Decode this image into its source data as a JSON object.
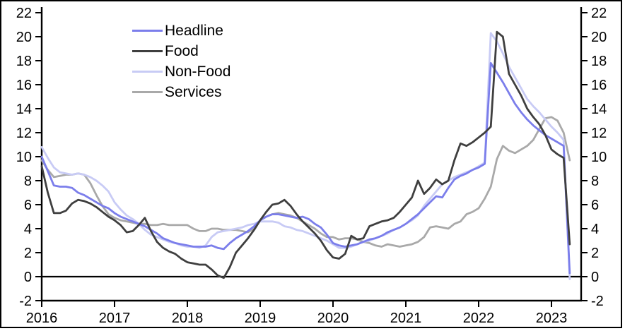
{
  "chart_data": {
    "type": "line",
    "title": "",
    "x_start": "2016-01",
    "x_frequency": "monthly",
    "xtick_labels": [
      "2016",
      "2017",
      "2018",
      "2019",
      "2020",
      "2021",
      "2022",
      "2023"
    ],
    "ylim": [
      -2,
      22
    ],
    "ytick_step": 2,
    "dual_y_axis": true,
    "grid": false,
    "zero_line": true,
    "legend_position": "top-left-inside",
    "series": [
      {
        "name": "Headline",
        "color": "#7b7eeb",
        "values": [
          10.0,
          8.8,
          7.6,
          7.5,
          7.5,
          7.4,
          7.0,
          6.8,
          6.5,
          6.2,
          5.9,
          5.7,
          5.3,
          5.0,
          4.8,
          4.6,
          4.4,
          4.2,
          3.9,
          3.6,
          3.2,
          3.0,
          2.8,
          2.7,
          2.6,
          2.5,
          2.5,
          2.5,
          2.6,
          2.4,
          2.3,
          2.8,
          3.2,
          3.5,
          3.8,
          4.2,
          4.7,
          5.0,
          5.2,
          5.2,
          5.1,
          5.0,
          4.9,
          5.0,
          4.8,
          4.4,
          4.1,
          3.5,
          2.8,
          2.6,
          2.5,
          2.6,
          2.7,
          2.9,
          3.1,
          3.2,
          3.4,
          3.7,
          3.9,
          4.1,
          4.4,
          4.8,
          5.2,
          5.7,
          6.2,
          6.7,
          6.6,
          7.4,
          8.1,
          8.4,
          8.6,
          8.9,
          9.1,
          9.4,
          17.8,
          17.0,
          16.2,
          15.3,
          14.4,
          13.7,
          13.1,
          12.6,
          12.2,
          11.8,
          11.5,
          11.2,
          10.9,
          0.3
        ]
      },
      {
        "name": "Food",
        "color": "#3f3f3f",
        "values": [
          9.2,
          7.0,
          5.3,
          5.3,
          5.5,
          6.1,
          6.4,
          6.3,
          6.1,
          5.8,
          5.4,
          5.0,
          4.7,
          4.3,
          3.7,
          3.8,
          4.3,
          4.9,
          3.8,
          2.9,
          2.4,
          2.1,
          1.9,
          1.5,
          1.2,
          1.1,
          1.0,
          1.0,
          0.6,
          0.1,
          -0.1,
          0.8,
          2.0,
          2.6,
          3.2,
          3.9,
          4.7,
          5.4,
          6.0,
          6.1,
          6.4,
          5.9,
          5.2,
          4.6,
          4.1,
          3.6,
          3.0,
          2.2,
          1.6,
          1.5,
          1.9,
          3.4,
          3.1,
          3.2,
          4.2,
          4.4,
          4.6,
          4.7,
          4.9,
          5.4,
          6.0,
          6.6,
          8.0,
          6.9,
          7.4,
          8.1,
          7.7,
          8.0,
          9.7,
          11.1,
          10.9,
          11.2,
          11.6,
          12.0,
          12.5,
          20.4,
          20.0,
          16.9,
          16.0,
          15.1,
          14.0,
          13.3,
          12.7,
          11.8,
          10.6,
          10.2,
          9.9,
          2.7
        ]
      },
      {
        "name": "Non-Food",
        "color": "#c8cbf5",
        "values": [
          10.8,
          9.9,
          9.1,
          8.7,
          8.6,
          8.5,
          8.6,
          8.5,
          8.3,
          8.0,
          7.6,
          7.1,
          6.2,
          5.6,
          5.1,
          4.8,
          4.4,
          3.9,
          3.5,
          3.3,
          3.1,
          2.9,
          2.8,
          2.6,
          2.5,
          2.5,
          2.4,
          2.6,
          3.3,
          3.7,
          3.8,
          3.9,
          4.0,
          4.1,
          4.3,
          4.4,
          4.6,
          4.6,
          4.6,
          4.5,
          4.2,
          4.1,
          3.9,
          3.8,
          3.6,
          3.4,
          3.2,
          3.0,
          2.7,
          2.4,
          2.4,
          2.5,
          2.7,
          2.9,
          3.0,
          3.2,
          3.4,
          3.6,
          3.9,
          4.1,
          4.4,
          4.7,
          5.1,
          5.9,
          6.5,
          7.1,
          7.7,
          8.0,
          8.3,
          8.5,
          8.7,
          8.9,
          9.2,
          9.5,
          20.3,
          19.6,
          18.6,
          17.5,
          16.6,
          15.7,
          14.8,
          14.2,
          13.7,
          13.1,
          12.5,
          12.0,
          11.4,
          -0.2
        ]
      },
      {
        "name": "Services",
        "color": "#a9a9a9",
        "values": [
          9.7,
          8.9,
          8.3,
          8.4,
          8.5,
          8.5,
          8.6,
          8.5,
          7.8,
          6.8,
          5.9,
          5.2,
          4.9,
          4.7,
          4.6,
          4.5,
          4.4,
          4.4,
          4.3,
          4.3,
          4.4,
          4.3,
          4.3,
          4.3,
          4.3,
          4.0,
          3.8,
          3.8,
          4.0,
          4.0,
          3.9,
          3.9,
          3.9,
          3.8,
          3.7,
          4.0,
          4.7,
          5.0,
          5.2,
          5.3,
          5.2,
          5.1,
          4.9,
          4.6,
          4.3,
          4.0,
          3.6,
          3.3,
          3.3,
          3.1,
          3.2,
          3.2,
          3.1,
          2.9,
          2.8,
          2.6,
          2.5,
          2.7,
          2.6,
          2.5,
          2.6,
          2.7,
          2.9,
          3.3,
          4.1,
          4.2,
          4.1,
          4.0,
          4.4,
          4.6,
          5.2,
          5.4,
          5.7,
          6.5,
          7.5,
          9.8,
          10.9,
          10.5,
          10.3,
          10.6,
          10.9,
          11.4,
          12.3,
          13.2,
          13.3,
          13.0,
          12.0,
          9.7
        ]
      }
    ],
    "draw_order": [
      "Services",
      "Non-Food",
      "Headline",
      "Food"
    ]
  }
}
